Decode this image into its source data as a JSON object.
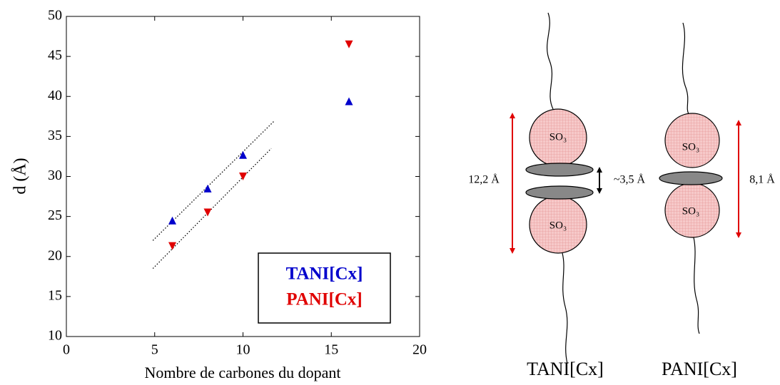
{
  "chart_data": {
    "type": "scatter",
    "x_label": "Nombre de carbones du dopant",
    "y_label": "d (Å)",
    "xlim": [
      0,
      20
    ],
    "xticks": [
      0,
      5,
      10,
      15,
      20
    ],
    "ylim": [
      10,
      50
    ],
    "yticks": [
      10,
      15,
      20,
      25,
      30,
      35,
      40,
      45,
      50
    ],
    "legend": "lower right",
    "series": [
      {
        "name": "TANI[Cx]",
        "color": "#0000cc",
        "marker": "triangle-up",
        "x": [
          6,
          8,
          10,
          16
        ],
        "values": [
          24.5,
          28.5,
          32.7,
          39.4
        ]
      },
      {
        "name": "PANI[Cx]",
        "color": "#e00000",
        "marker": "triangle-down",
        "x": [
          6,
          8,
          10,
          16
        ],
        "values": [
          21.3,
          25.5,
          30,
          46.5
        ]
      }
    ],
    "trendlines": [
      {
        "x": [
          4.9,
          11.8
        ],
        "values": [
          22,
          37
        ]
      },
      {
        "x": [
          4.9,
          11.6
        ],
        "values": [
          18.5,
          33.5
        ]
      }
    ]
  },
  "diagram": {
    "tani": {
      "label": "TANI[Cx]",
      "head_top": "SO₃",
      "head_bottom": "SO₃",
      "spacing": "12,2 Å",
      "stacking": "~3,5 Å"
    },
    "pani": {
      "label": "PANI[Cx]",
      "head_top": "SO₃",
      "head_bottom": "SO₃",
      "spacing": "8,1 Å"
    }
  }
}
